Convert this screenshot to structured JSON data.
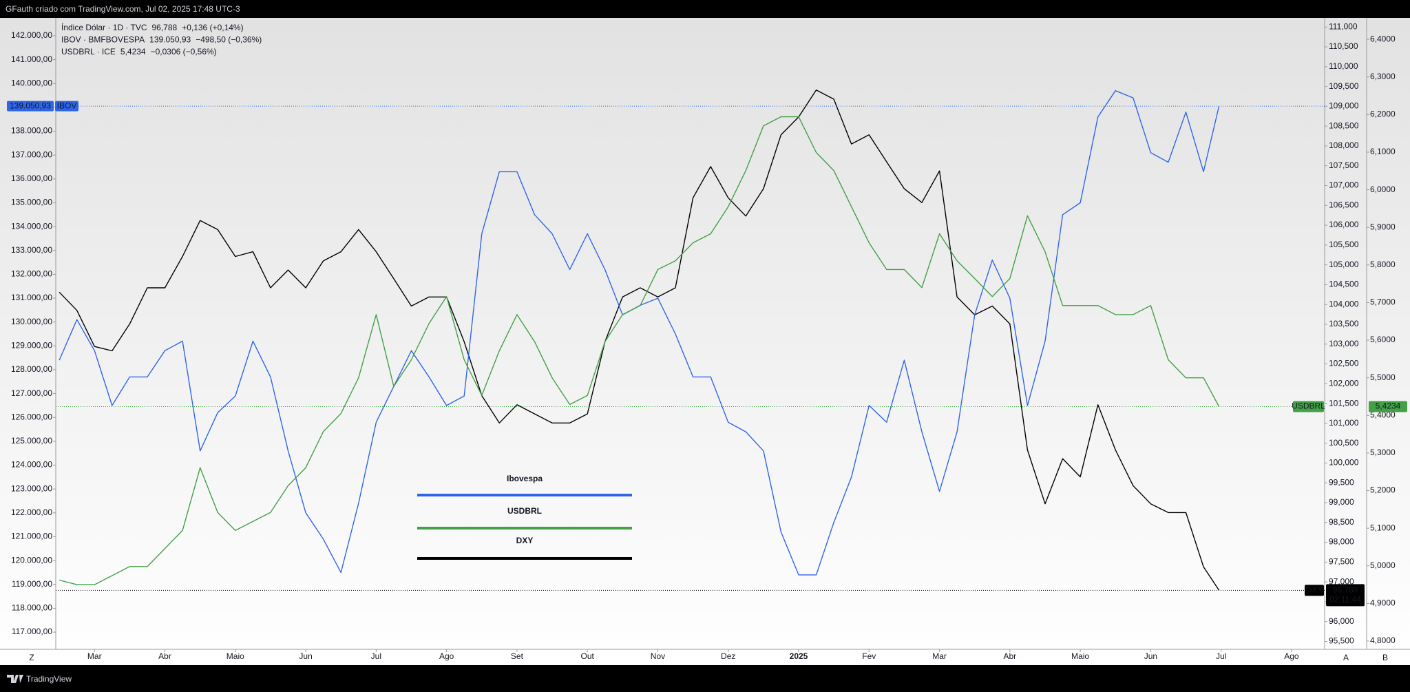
{
  "header": "GFauth criado com TradingView.com, Jul 02, 2025 17:48 UTC-3",
  "footer": "TradingView",
  "axis_buttons": [
    "Z",
    "A",
    "B"
  ],
  "chart_data": {
    "type": "line",
    "x": [
      0.5,
      0.75,
      1,
      1.25,
      1.5,
      1.75,
      2,
      2.25,
      2.5,
      2.75,
      3,
      3.25,
      3.5,
      3.75,
      4,
      4.25,
      4.5,
      4.75,
      5,
      5.25,
      5.5,
      5.75,
      6,
      6.25,
      6.5,
      6.75,
      7,
      7.25,
      7.5,
      7.75,
      8,
      8.25,
      8.5,
      8.75,
      9,
      9.25,
      9.5,
      9.75,
      10,
      10.25,
      10.5,
      10.75,
      11,
      11.25,
      11.5,
      11.75,
      12,
      12.25,
      12.5,
      12.75,
      13,
      13.25,
      13.5,
      13.75,
      14,
      14.25,
      14.5,
      14.75,
      15,
      15.25,
      15.5,
      15.75,
      16,
      16.25,
      16.5,
      16.75,
      16.97
    ],
    "xlim": [
      0.45,
      18.47
    ],
    "xticks": [
      {
        "value": 1,
        "label": "Mar"
      },
      {
        "value": 2,
        "label": "Abr"
      },
      {
        "value": 3,
        "label": "Maio"
      },
      {
        "value": 4,
        "label": "Jun"
      },
      {
        "value": 5,
        "label": "Jul"
      },
      {
        "value": 6,
        "label": "Ago"
      },
      {
        "value": 7,
        "label": "Set"
      },
      {
        "value": 8,
        "label": "Out"
      },
      {
        "value": 9,
        "label": "Nov"
      },
      {
        "value": 10,
        "label": "Dez"
      },
      {
        "value": 11,
        "label": "2025"
      },
      {
        "value": 12,
        "label": "Fev"
      },
      {
        "value": 13,
        "label": "Mar"
      },
      {
        "value": 14,
        "label": "Abr"
      },
      {
        "value": 15,
        "label": "Maio"
      },
      {
        "value": 16,
        "label": "Jun"
      },
      {
        "value": 17,
        "label": "Jul"
      },
      {
        "value": 18,
        "label": "Ago"
      }
    ],
    "ylim": [
      116280,
      142750
    ],
    "yticks": [
      {
        "value": 117000,
        "label": "117.000,00"
      },
      {
        "value": 118000,
        "label": "118.000,00"
      },
      {
        "value": 119000,
        "label": "119.000,00"
      },
      {
        "value": 120000,
        "label": "120.000,00"
      },
      {
        "value": 121000,
        "label": "121.000,00"
      },
      {
        "value": 122000,
        "label": "122.000,00"
      },
      {
        "value": 123000,
        "label": "123.000,00"
      },
      {
        "value": 124000,
        "label": "124.000,00"
      },
      {
        "value": 125000,
        "label": "125.000,00"
      },
      {
        "value": 126000,
        "label": "126.000,00"
      },
      {
        "value": 127000,
        "label": "127.000,00"
      },
      {
        "value": 128000,
        "label": "128.000,00"
      },
      {
        "value": 129000,
        "label": "129.000,00"
      },
      {
        "value": 130000,
        "label": "130.000,00"
      },
      {
        "value": 131000,
        "label": "131.000,00"
      },
      {
        "value": 132000,
        "label": "132.000,00"
      },
      {
        "value": 133000,
        "label": "133.000,00"
      },
      {
        "value": 134000,
        "label": "134.000,00"
      },
      {
        "value": 135000,
        "label": "135.000,00"
      },
      {
        "value": 136000,
        "label": "136.000,00"
      },
      {
        "value": 137000,
        "label": "137.000,00"
      },
      {
        "value": 138000,
        "label": "138.000,00"
      },
      {
        "value": 139000,
        "label": "139.000,00"
      },
      {
        "value": 140000,
        "label": "140.000,00"
      },
      {
        "value": 141000,
        "label": "141.000,00"
      },
      {
        "value": 142000,
        "label": "142.000,00"
      }
    ],
    "y2lim": [
      95300,
      111230
    ],
    "y2ticks": [
      {
        "value": 95500,
        "label": "95,500"
      },
      {
        "value": 96000,
        "label": "96,000"
      },
      {
        "value": 96500,
        "label": "96,500"
      },
      {
        "value": 97000,
        "label": "97,000"
      },
      {
        "value": 97500,
        "label": "97,500"
      },
      {
        "value": 98000,
        "label": "98,000"
      },
      {
        "value": 98500,
        "label": "98,500"
      },
      {
        "value": 99000,
        "label": "99,000"
      },
      {
        "value": 99500,
        "label": "99,500"
      },
      {
        "value": 100000,
        "label": "100,000"
      },
      {
        "value": 100500,
        "label": "100,500"
      },
      {
        "value": 101000,
        "label": "101,000"
      },
      {
        "value": 101500,
        "label": "101,500"
      },
      {
        "value": 102000,
        "label": "102,000"
      },
      {
        "value": 102500,
        "label": "102,500"
      },
      {
        "value": 103000,
        "label": "103,000"
      },
      {
        "value": 103500,
        "label": "103,500"
      },
      {
        "value": 104000,
        "label": "104,000"
      },
      {
        "value": 104500,
        "label": "104,500"
      },
      {
        "value": 105000,
        "label": "105,000"
      },
      {
        "value": 105500,
        "label": "105,500"
      },
      {
        "value": 106000,
        "label": "106,000"
      },
      {
        "value": 106500,
        "label": "106,500"
      },
      {
        "value": 107000,
        "label": "107,000"
      },
      {
        "value": 107500,
        "label": "107,500"
      },
      {
        "value": 108000,
        "label": "108,000"
      },
      {
        "value": 108500,
        "label": "108,500"
      },
      {
        "value": 109000,
        "label": "109,000"
      },
      {
        "value": 109500,
        "label": "109,500"
      },
      {
        "value": 110000,
        "label": "110,000"
      },
      {
        "value": 110500,
        "label": "110,500"
      },
      {
        "value": 111000,
        "label": "111,000"
      }
    ],
    "y3lim": [
      4.778,
      6.457
    ],
    "y3ticks": [
      {
        "value": 4.8,
        "label": "4,8000"
      },
      {
        "value": 4.9,
        "label": "4,9000"
      },
      {
        "value": 5.0,
        "label": "5,0000"
      },
      {
        "value": 5.1,
        "label": "5,1000"
      },
      {
        "value": 5.2,
        "label": "5,2000"
      },
      {
        "value": 5.3,
        "label": "5,3000"
      },
      {
        "value": 5.4,
        "label": "5,4000"
      },
      {
        "value": 5.5,
        "label": "5,5000"
      },
      {
        "value": 5.6,
        "label": "5,6000"
      },
      {
        "value": 5.7,
        "label": "5,7000"
      },
      {
        "value": 5.8,
        "label": "5,8000"
      },
      {
        "value": 5.9,
        "label": "5,9000"
      },
      {
        "value": 6.0,
        "label": "6,0000"
      },
      {
        "value": 6.1,
        "label": "6,1000"
      },
      {
        "value": 6.2,
        "label": "6,2000"
      },
      {
        "value": 6.3,
        "label": "6,3000"
      },
      {
        "value": 6.4,
        "label": "6,4000"
      }
    ],
    "grid": false,
    "series": [
      {
        "name": "Índice Dólar · 1D · TVC",
        "tag": "DXY",
        "last": "96,788",
        "change": "+0,136 (+0,14%)",
        "countdown": "02:11:44",
        "color": "#000000",
        "text_color": "#131722",
        "axis": "y2",
        "values": [
          104310,
          103850,
          102940,
          102830,
          103510,
          104420,
          104420,
          105210,
          106120,
          105890,
          105210,
          105330,
          104420,
          104870,
          104420,
          105100,
          105330,
          105890,
          105330,
          104650,
          103960,
          104190,
          104190,
          103060,
          101700,
          101010,
          101470,
          101240,
          101010,
          101010,
          101240,
          103060,
          104190,
          104420,
          104190,
          104420,
          106690,
          107480,
          106690,
          106230,
          106920,
          108280,
          108730,
          109410,
          109180,
          108050,
          108280,
          107600,
          106920,
          106570,
          107370,
          104190,
          103740,
          103960,
          103510,
          100330,
          98970,
          100110,
          99650,
          101470,
          100330,
          99430,
          98970,
          98750,
          98750,
          97380,
          96788
        ]
      },
      {
        "name": "IBOV · BMFBOVESPA",
        "tag": "IBOV",
        "last": "139.050,93",
        "change": "−498,50 (−0,36%)",
        "color": "#2f66e8",
        "text_color": "#2f66e8",
        "axis": "y",
        "values": [
          128400,
          130100,
          128800,
          126500,
          127700,
          127700,
          128800,
          129200,
          124600,
          126200,
          126900,
          129200,
          127700,
          124600,
          122000,
          120900,
          119500,
          122400,
          125800,
          127300,
          128800,
          127700,
          126500,
          126900,
          133700,
          136300,
          136300,
          134500,
          133700,
          132200,
          133700,
          132200,
          130300,
          130700,
          131000,
          129500,
          127700,
          127700,
          125800,
          125400,
          124600,
          121200,
          119400,
          119400,
          121600,
          123500,
          126500,
          125800,
          128400,
          125400,
          122900,
          125400,
          130300,
          132600,
          131000,
          126500,
          129200,
          134500,
          135000,
          138600,
          139700,
          139400,
          137100,
          136700,
          138800,
          136300,
          139050.93
        ]
      },
      {
        "name": "USDBRL · ICE",
        "tag": "USDBRL",
        "last": "5,4234",
        "change": "−0,0306 (−0,56%)",
        "color": "#43a047",
        "text_color": "#43a047",
        "axis": "y3",
        "values": [
          4.962,
          4.95,
          4.95,
          4.974,
          4.998,
          4.998,
          5.046,
          5.094,
          5.261,
          5.142,
          5.094,
          5.118,
          5.142,
          5.213,
          5.261,
          5.357,
          5.405,
          5.5,
          5.668,
          5.477,
          5.548,
          5.644,
          5.716,
          5.548,
          5.453,
          5.572,
          5.668,
          5.596,
          5.5,
          5.429,
          5.453,
          5.596,
          5.668,
          5.692,
          5.788,
          5.811,
          5.859,
          5.883,
          5.955,
          6.051,
          6.17,
          6.194,
          6.194,
          6.099,
          6.051,
          5.955,
          5.859,
          5.788,
          5.788,
          5.74,
          5.883,
          5.811,
          5.764,
          5.716,
          5.764,
          5.931,
          5.835,
          5.692,
          5.692,
          5.692,
          5.668,
          5.668,
          5.692,
          5.548,
          5.5,
          5.5,
          5.4234
        ]
      }
    ],
    "annotations": [
      {
        "text": "Ibovespa",
        "color": "#2f66e8"
      },
      {
        "text": "USDBRL",
        "color": "#43a047"
      },
      {
        "text": "DXY",
        "color": "#000000"
      }
    ]
  }
}
